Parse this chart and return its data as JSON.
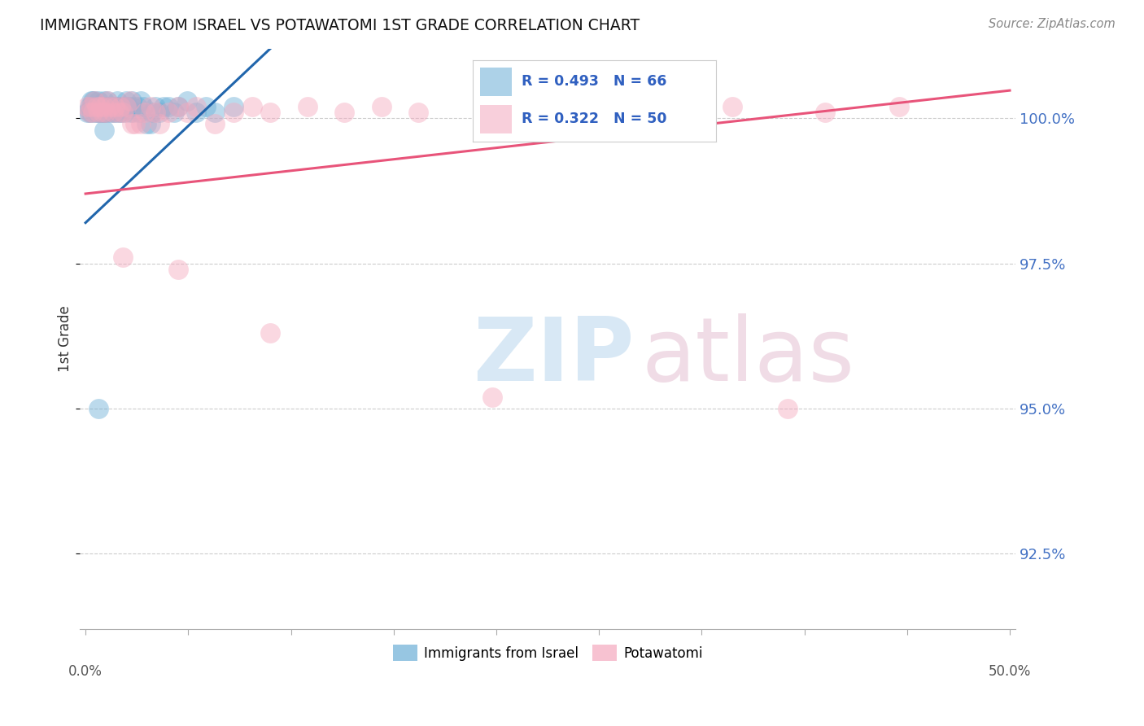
{
  "title": "IMMIGRANTS FROM ISRAEL VS POTAWATOMI 1ST GRADE CORRELATION CHART",
  "source": "Source: ZipAtlas.com",
  "ylabel": "1st Grade",
  "legend_label1": "Immigrants from Israel",
  "legend_label2": "Potawatomi",
  "R1": 0.493,
  "N1": 66,
  "R2": 0.322,
  "N2": 50,
  "blue_color": "#6baed6",
  "pink_color": "#f4a9be",
  "line_blue": "#2166ac",
  "line_pink": "#e8547a",
  "xlim": [
    0.0,
    0.5
  ],
  "ylim": [
    0.912,
    1.012
  ],
  "ytick_values": [
    1.0,
    0.975,
    0.95,
    0.925
  ],
  "ytick_labels": [
    "100.0%",
    "97.5%",
    "95.0%",
    "92.5%"
  ],
  "blue_x": [
    0.001,
    0.002,
    0.002,
    0.003,
    0.003,
    0.003,
    0.004,
    0.004,
    0.005,
    0.005,
    0.005,
    0.006,
    0.006,
    0.007,
    0.007,
    0.007,
    0.008,
    0.008,
    0.009,
    0.009,
    0.009,
    0.01,
    0.01,
    0.011,
    0.011,
    0.012,
    0.012,
    0.013,
    0.014,
    0.015,
    0.015,
    0.016,
    0.016,
    0.017,
    0.018,
    0.018,
    0.019,
    0.02,
    0.021,
    0.022,
    0.022,
    0.023,
    0.024,
    0.025,
    0.025,
    0.026,
    0.028,
    0.029,
    0.03,
    0.031,
    0.033,
    0.035,
    0.036,
    0.038,
    0.04,
    0.042,
    0.045,
    0.048,
    0.05,
    0.055,
    0.06,
    0.065,
    0.07,
    0.08,
    0.01,
    0.007
  ],
  "blue_y": [
    1.001,
    1.002,
    1.001,
    1.003,
    1.002,
    1.001,
    1.003,
    1.002,
    1.003,
    1.002,
    1.001,
    1.002,
    1.001,
    1.003,
    1.002,
    1.001,
    1.002,
    1.001,
    1.002,
    1.001,
    1.002,
    1.003,
    1.001,
    1.002,
    1.001,
    1.003,
    1.002,
    1.001,
    1.002,
    1.002,
    1.001,
    1.002,
    1.001,
    1.003,
    1.001,
    1.002,
    1.001,
    1.002,
    1.001,
    1.002,
    1.003,
    1.002,
    1.001,
    1.002,
    1.003,
    1.001,
    1.002,
    1.001,
    1.003,
    1.002,
    0.999,
    0.999,
    1.001,
    1.002,
    1.001,
    1.002,
    1.002,
    1.001,
    1.002,
    1.003,
    1.001,
    1.002,
    1.001,
    1.002,
    0.998,
    0.95
  ],
  "pink_x": [
    0.001,
    0.002,
    0.003,
    0.004,
    0.005,
    0.006,
    0.007,
    0.008,
    0.009,
    0.01,
    0.011,
    0.012,
    0.013,
    0.015,
    0.016,
    0.018,
    0.019,
    0.02,
    0.022,
    0.024,
    0.025,
    0.027,
    0.03,
    0.032,
    0.035,
    0.038,
    0.04,
    0.045,
    0.05,
    0.055,
    0.06,
    0.07,
    0.08,
    0.09,
    0.1,
    0.12,
    0.14,
    0.16,
    0.18,
    0.22,
    0.26,
    0.3,
    0.35,
    0.4,
    0.44,
    0.02,
    0.05,
    0.1,
    0.22,
    0.38
  ],
  "pink_y": [
    1.002,
    1.001,
    1.002,
    1.001,
    1.003,
    1.002,
    1.001,
    1.002,
    1.001,
    1.002,
    1.001,
    1.003,
    1.002,
    1.001,
    1.002,
    1.001,
    1.002,
    1.001,
    1.002,
    1.003,
    0.999,
    0.999,
    0.999,
    1.001,
    1.002,
    1.001,
    0.999,
    1.001,
    1.002,
    1.001,
    1.002,
    0.999,
    1.001,
    1.002,
    1.001,
    1.002,
    1.001,
    1.002,
    1.001,
    1.002,
    1.003,
    1.001,
    1.002,
    1.001,
    1.002,
    0.976,
    0.974,
    0.963,
    0.952,
    0.95
  ]
}
